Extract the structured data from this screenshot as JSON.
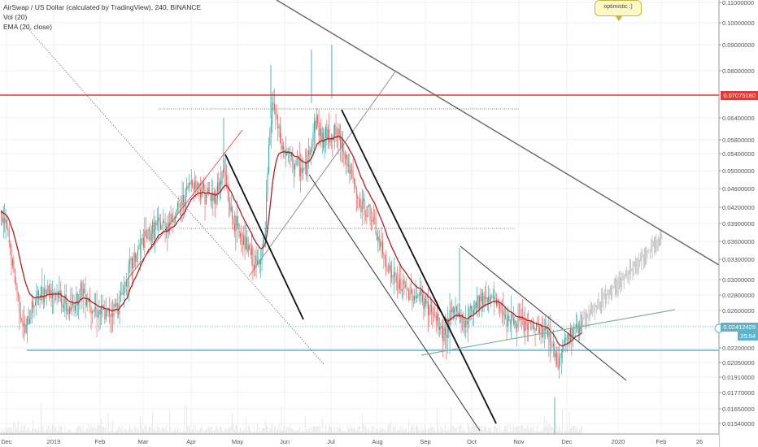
{
  "chart_data": {
    "type": "candlestick",
    "title": "AirSwap / US Dollar (calculated by TradingView), 240, BINANCE",
    "indicators": [
      "Vol (20)",
      "EMA (20, close)"
    ],
    "annotation": "optimistic :)",
    "y_axis": {
      "ticks": [
        "0.11000000",
        "0.10000000",
        "0.09000000",
        "0.08000000",
        "0.07075160",
        "0.06400000",
        "0.05800000",
        "0.05400000",
        "0.05000000",
        "0.04600000",
        "0.04200000",
        "0.03900000",
        "0.03600000",
        "0.03300000",
        "0.03000000",
        "0.02800000",
        "0.02600000",
        "0.02412429",
        "0.02200000",
        "0.02050000",
        "0.01910000",
        "0.01770000",
        "0.01650000",
        "0.01540000"
      ],
      "ylim": [
        0.0147,
        0.112
      ]
    },
    "x_axis": {
      "ticks": [
        "Dec",
        "2019",
        "Feb",
        "Mar",
        "Apr",
        "May",
        "Jun",
        "Jul",
        "Aug",
        "Sep",
        "Oct",
        "Nov",
        "Dec",
        "2020",
        "Feb",
        "26"
      ]
    },
    "resistance_level": "0.07075160",
    "current_price": "0.02412429",
    "countdown": "25:54",
    "colors": {
      "up": "#26a69a",
      "down": "#ef5350",
      "ema": "#b71c1c",
      "resistance_line": "#e53935",
      "support_line": "#4aa3c2",
      "current_line": "#5fb3c9",
      "trend_line": "#666666",
      "projection": "#9e9e9e",
      "green_trend": "#7fb3a0"
    }
  }
}
